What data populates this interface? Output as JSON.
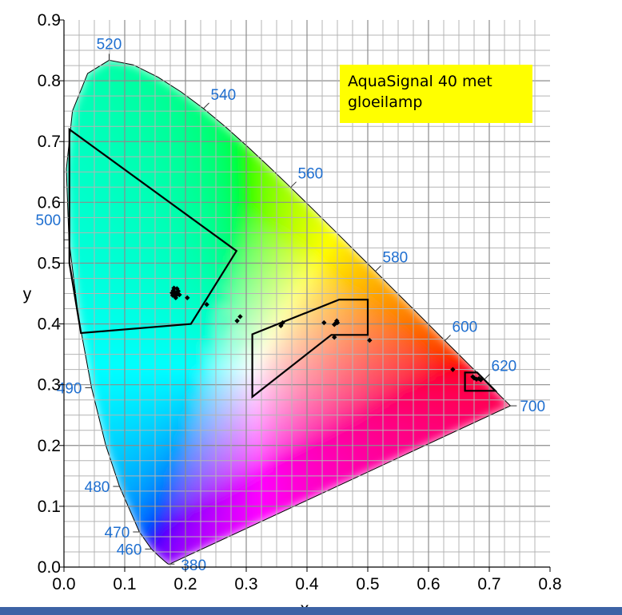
{
  "chart_data": {
    "type": "scatter",
    "title": "",
    "xlabel": "x",
    "ylabel": "y",
    "xlim": [
      0.0,
      0.8
    ],
    "ylim": [
      0.0,
      0.9
    ],
    "x_ticks": [
      "0.0",
      "0.1",
      "0.2",
      "0.3",
      "0.4",
      "0.5",
      "0.6",
      "0.7",
      "0.8"
    ],
    "y_ticks": [
      "0.0",
      "0.1",
      "0.2",
      "0.3",
      "0.4",
      "0.5",
      "0.6",
      "0.7",
      "0.8",
      "0.9"
    ],
    "grid": true,
    "annotation": {
      "line1": "AquaSignal 40 met",
      "line2": "gloeilamp"
    },
    "spectral_locus": [
      [
        0.1741,
        0.005
      ],
      [
        0.1738,
        0.0049
      ],
      [
        0.1733,
        0.0048
      ],
      [
        0.1726,
        0.0048
      ],
      [
        0.1714,
        0.0051
      ],
      [
        0.1689,
        0.0069
      ],
      [
        0.1644,
        0.0109
      ],
      [
        0.1566,
        0.0177
      ],
      [
        0.144,
        0.0297
      ],
      [
        0.1241,
        0.0578
      ],
      [
        0.0913,
        0.1327
      ],
      [
        0.0687,
        0.2007
      ],
      [
        0.0454,
        0.295
      ],
      [
        0.0235,
        0.4127
      ],
      [
        0.0082,
        0.5384
      ],
      [
        0.0039,
        0.6548
      ],
      [
        0.0139,
        0.7502
      ],
      [
        0.0389,
        0.812
      ],
      [
        0.0743,
        0.8338
      ],
      [
        0.1142,
        0.8262
      ],
      [
        0.1547,
        0.8059
      ],
      [
        0.1929,
        0.7816
      ],
      [
        0.2296,
        0.7543
      ],
      [
        0.2658,
        0.7243
      ],
      [
        0.3016,
        0.6923
      ],
      [
        0.3373,
        0.6589
      ],
      [
        0.3731,
        0.6245
      ],
      [
        0.4087,
        0.5896
      ],
      [
        0.4441,
        0.5547
      ],
      [
        0.4788,
        0.5202
      ],
      [
        0.5125,
        0.4866
      ],
      [
        0.5448,
        0.4544
      ],
      [
        0.5752,
        0.4242
      ],
      [
        0.6029,
        0.3965
      ],
      [
        0.627,
        0.3725
      ],
      [
        0.6482,
        0.3514
      ],
      [
        0.6658,
        0.334
      ],
      [
        0.6801,
        0.3197
      ],
      [
        0.6915,
        0.3083
      ],
      [
        0.7006,
        0.2993
      ],
      [
        0.7079,
        0.292
      ],
      [
        0.714,
        0.2859
      ],
      [
        0.719,
        0.2809
      ],
      [
        0.723,
        0.277
      ],
      [
        0.726,
        0.274
      ],
      [
        0.7283,
        0.2717
      ],
      [
        0.73,
        0.27
      ],
      [
        0.7311,
        0.2689
      ],
      [
        0.732,
        0.268
      ],
      [
        0.7327,
        0.2673
      ],
      [
        0.7334,
        0.2666
      ],
      [
        0.734,
        0.266
      ],
      [
        0.7344,
        0.2656
      ],
      [
        0.7346,
        0.2654
      ],
      [
        0.7347,
        0.2653
      ]
    ],
    "wavelength_labels": [
      {
        "text": "380",
        "x": 0.1741,
        "y": 0.005,
        "anchor": "right"
      },
      {
        "text": "460",
        "x": 0.144,
        "y": 0.0297,
        "anchor": "left"
      },
      {
        "text": "470",
        "x": 0.1241,
        "y": 0.0578,
        "anchor": "left"
      },
      {
        "text": "480",
        "x": 0.0913,
        "y": 0.1327,
        "anchor": "left"
      },
      {
        "text": "490",
        "x": 0.0454,
        "y": 0.295,
        "anchor": "left"
      },
      {
        "text": "500",
        "x": 0.0082,
        "y": 0.5384,
        "anchor": "left"
      },
      {
        "text": "520",
        "x": 0.0743,
        "y": 0.8338,
        "anchor": "up"
      },
      {
        "text": "540",
        "x": 0.2296,
        "y": 0.7543,
        "anchor": "upright"
      },
      {
        "text": "560",
        "x": 0.3731,
        "y": 0.6245,
        "anchor": "upright"
      },
      {
        "text": "580",
        "x": 0.5125,
        "y": 0.4866,
        "anchor": "upright"
      },
      {
        "text": "600",
        "x": 0.627,
        "y": 0.3725,
        "anchor": "upright"
      },
      {
        "text": "620",
        "x": 0.6915,
        "y": 0.3083,
        "anchor": "upright"
      },
      {
        "text": "700",
        "x": 0.7347,
        "y": 0.2653,
        "anchor": "right"
      }
    ],
    "regions": [
      {
        "name": "green",
        "points": [
          [
            0.009,
            0.72
          ],
          [
            0.284,
            0.52
          ],
          [
            0.209,
            0.4
          ],
          [
            0.028,
            0.385
          ],
          [
            0.009,
            0.5
          ]
        ]
      },
      {
        "name": "white",
        "points": [
          [
            0.31,
            0.383
          ],
          [
            0.453,
            0.44
          ],
          [
            0.5,
            0.44
          ],
          [
            0.5,
            0.382
          ],
          [
            0.44,
            0.382
          ],
          [
            0.31,
            0.28
          ]
        ]
      },
      {
        "name": "red",
        "points": [
          [
            0.66,
            0.32
          ],
          [
            0.68,
            0.32
          ],
          [
            0.71,
            0.29
          ],
          [
            0.66,
            0.29
          ]
        ]
      }
    ],
    "series": [
      {
        "values": [
          [
            0.185,
            0.45
          ],
          [
            0.18,
            0.455
          ],
          [
            0.182,
            0.452
          ],
          [
            0.187,
            0.449
          ],
          [
            0.183,
            0.446
          ],
          [
            0.179,
            0.447
          ],
          [
            0.186,
            0.458
          ],
          [
            0.188,
            0.454
          ],
          [
            0.184,
            0.443
          ],
          [
            0.19,
            0.448
          ],
          [
            0.181,
            0.459
          ],
          [
            0.178,
            0.451
          ],
          [
            0.203,
            0.443
          ],
          [
            0.235,
            0.432
          ],
          [
            0.285,
            0.405
          ],
          [
            0.29,
            0.412
          ],
          [
            0.357,
            0.397
          ],
          [
            0.36,
            0.402
          ],
          [
            0.428,
            0.402
          ],
          [
            0.447,
            0.401
          ],
          [
            0.45,
            0.402
          ],
          [
            0.445,
            0.399
          ],
          [
            0.449,
            0.405
          ],
          [
            0.445,
            0.378
          ],
          [
            0.503,
            0.373
          ],
          [
            0.64,
            0.325
          ],
          [
            0.675,
            0.311
          ],
          [
            0.679,
            0.309
          ],
          [
            0.683,
            0.31
          ],
          [
            0.686,
            0.308
          ],
          [
            0.673,
            0.313
          ]
        ]
      }
    ]
  }
}
